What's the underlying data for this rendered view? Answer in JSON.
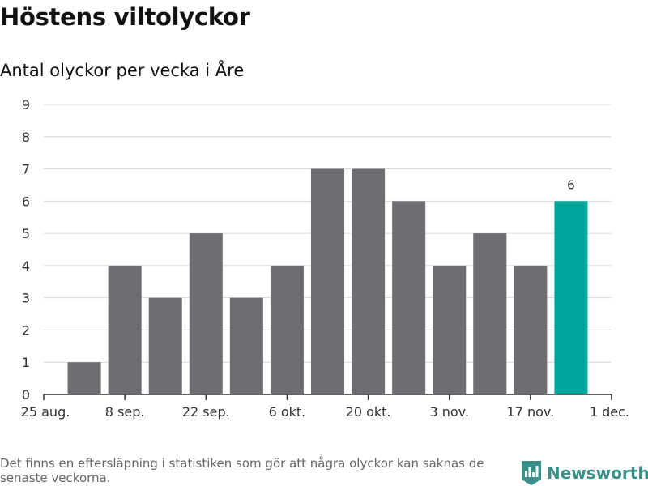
{
  "title": "Höstens viltolyckor",
  "subtitle": "Antal olyckor per vecka i Åre",
  "footnote": "Det finns en eftersläpning i statistiken som gör att några olyckor kan saknas de senaste veckorna.",
  "brand": {
    "name": "Newsworthy",
    "icon": "newsworthy-logo-icon"
  },
  "colors": {
    "bar": "#6e6d72",
    "highlight": "#00a69c",
    "grid": "#d9d9d9",
    "axis": "#333333"
  },
  "chart_data": {
    "type": "bar",
    "title": "Höstens viltolyckor",
    "subtitle": "Antal olyckor per vecka i Åre",
    "xlabel": "",
    "ylabel": "",
    "categories": [
      "1 sep.",
      "8 sep.",
      "15 sep.",
      "22 sep.",
      "29 sep.",
      "6 okt.",
      "13 okt.",
      "20 okt.",
      "27 okt.",
      "3 nov.",
      "10 nov.",
      "17 nov.",
      "24 nov."
    ],
    "values": [
      1,
      4,
      3,
      5,
      3,
      4,
      7,
      7,
      6,
      4,
      5,
      4,
      6
    ],
    "highlight_index": 12,
    "highlight_label": "6",
    "x_ticks": [
      "25 aug.",
      "8 sep.",
      "22 sep.",
      "6 okt.",
      "20 okt.",
      "3 nov.",
      "17 nov.",
      "1 dec."
    ],
    "y_ticks": [
      "0",
      "1",
      "2",
      "3",
      "4",
      "5",
      "6",
      "7",
      "8",
      "9"
    ],
    "ylim": [
      0,
      9
    ],
    "grid": true,
    "legend": false
  }
}
